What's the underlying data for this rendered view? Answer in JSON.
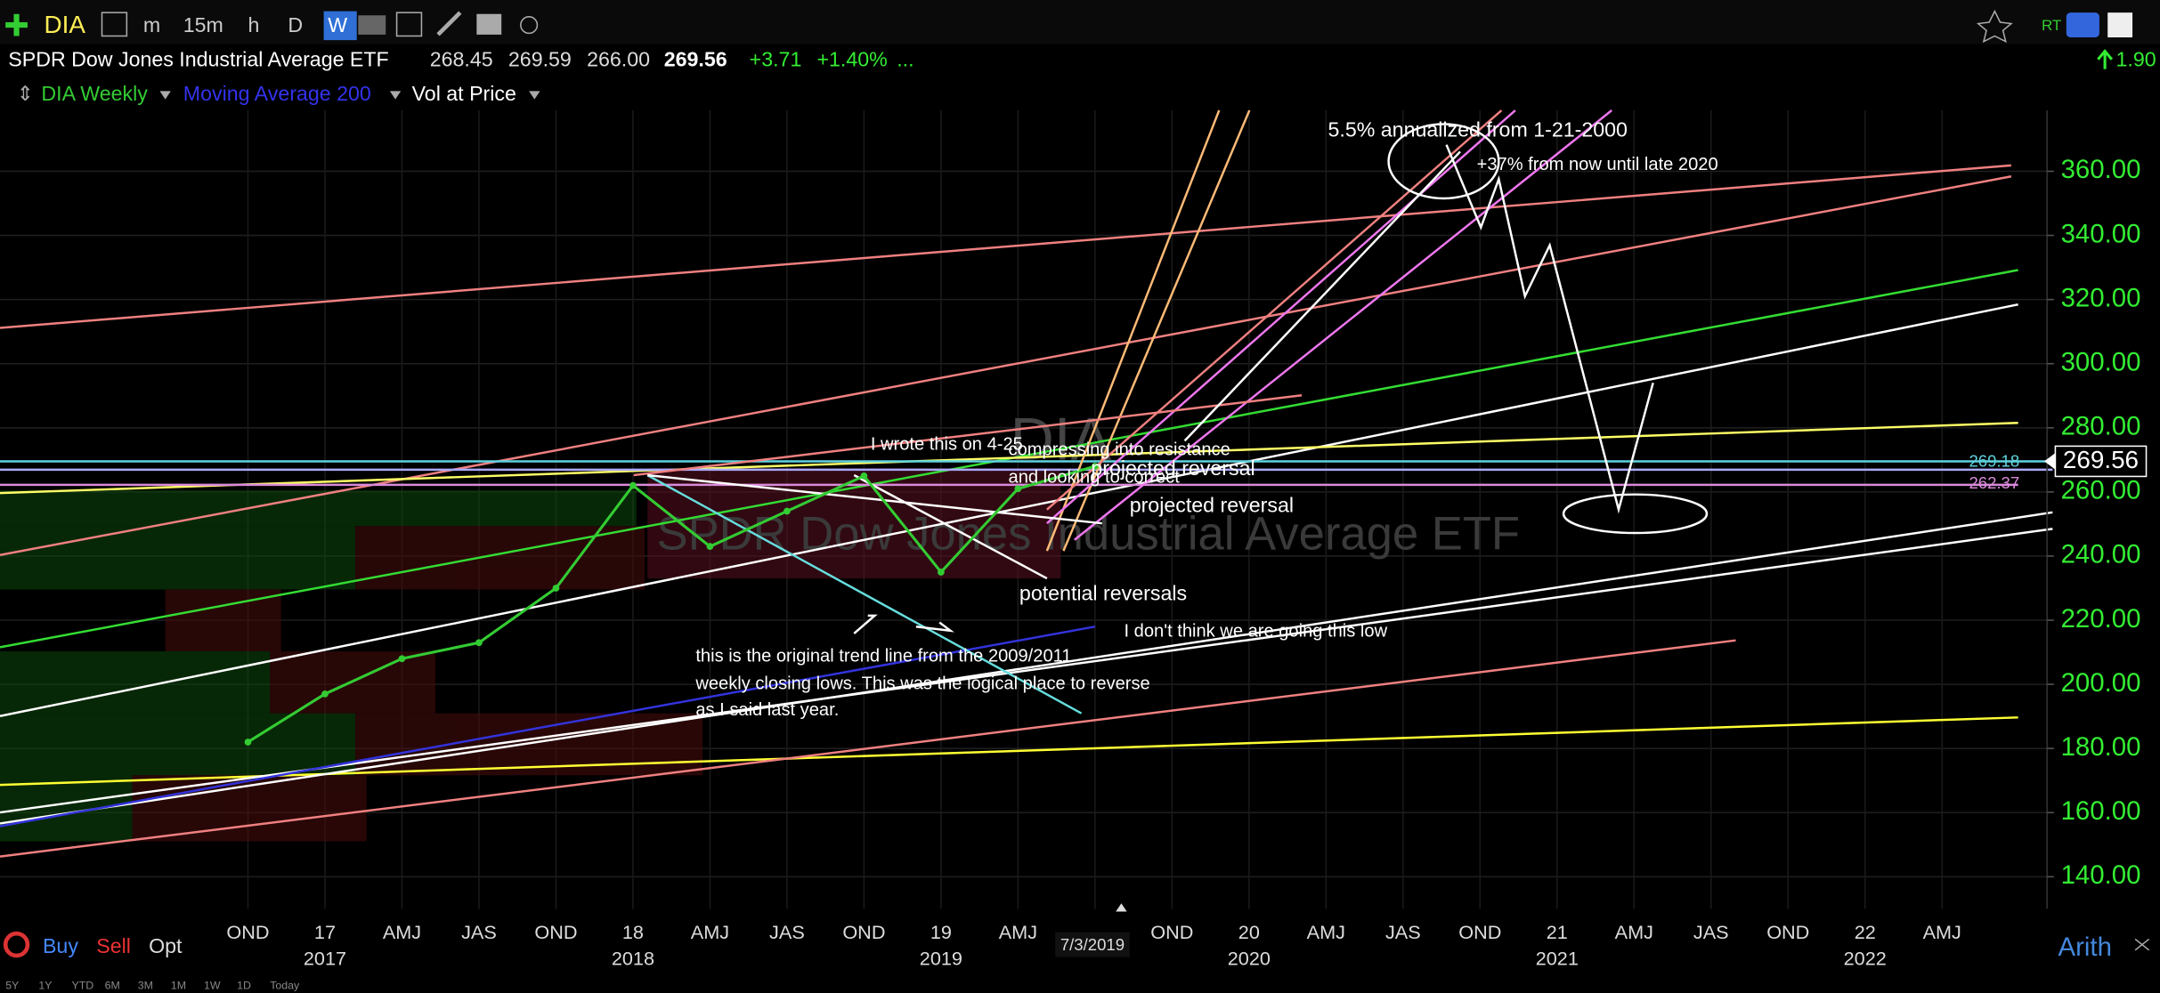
{
  "toolbar": {
    "symbol": "DIA",
    "timeframes": [
      "m",
      "15m",
      "h",
      "D",
      "W"
    ],
    "rt": "RT",
    "right_value": "1.90"
  },
  "quote": {
    "name": "SPDR Dow Jones Industrial Average ETF",
    "open": "268.45",
    "high": "269.59",
    "low": "266.00",
    "last": "269.56",
    "change": "+3.71",
    "change_pct": "+1.40%",
    "more": "..."
  },
  "legend": {
    "symbol": "DIA Weekly",
    "study": "Moving Average 200",
    "overlay": "Vol at Price"
  },
  "watermark": {
    "symbol": "DIA",
    "name": "SPDR Dow Jones Industrial Average ETF"
  },
  "annotations": {
    "annualized": "5.5% annualized from 1-21-2000",
    "target": "+37% from now until late 2020",
    "wrote": "I wrote this on 4-25",
    "compressing": "compressing into resistance",
    "correct": "and looking to correct",
    "projected_1": "projected reversal",
    "projected_2": "projected reversal",
    "potential": "potential reversals",
    "low": "I don't think we are going this low",
    "trend_1": "this is the original trend line from the 2009/2011",
    "trend_2": "weekly closing lows. This was the logical place to reverse",
    "trend_3": "as I said last year."
  },
  "bottom": {
    "buy": "Buy",
    "sell": "Sell",
    "opt": "Opt",
    "scale": "Arith",
    "cursor_date": "7/3/2019",
    "ranges": [
      "5Y",
      "1Y",
      "YTD",
      "6M",
      "3M",
      "1M",
      "1W",
      "1D",
      "Today"
    ]
  },
  "chart_data": {
    "type": "line",
    "categories": [
      "OND",
      "17",
      "AMJ",
      "JAS",
      "OND",
      "18",
      "AMJ",
      "JAS",
      "OND",
      "19",
      "AMJ",
      null,
      "OND",
      "20",
      "AMJ",
      "JAS",
      "OND",
      "21",
      "AMJ",
      "JAS",
      "OND",
      "22",
      "AMJ"
    ],
    "year_labels": [
      "2017",
      "2018",
      "2019",
      "2020",
      "2021",
      "2022"
    ],
    "series": [
      {
        "name": "DIA Weekly",
        "color": "#33cc33",
        "values": [
          182,
          197,
          208,
          213,
          230,
          262,
          243,
          254,
          265,
          235,
          261,
          268,
          null,
          null,
          null,
          null,
          null,
          null,
          null,
          null,
          null,
          null,
          null
        ]
      }
    ],
    "ylim": [
      130,
      379
    ],
    "yticks": [
      {
        "value": 140,
        "label": "140.00"
      },
      {
        "value": 160,
        "label": "160.00"
      },
      {
        "value": 180,
        "label": "180.00"
      },
      {
        "value": 200,
        "label": "200.00"
      },
      {
        "value": 220,
        "label": "220.00"
      },
      {
        "value": 240,
        "label": "240.00"
      },
      {
        "value": 260,
        "label": "260.00"
      },
      {
        "value": 280,
        "label": "280.00"
      },
      {
        "value": 300,
        "label": "300.00"
      },
      {
        "value": 320,
        "label": "320.00"
      },
      {
        "value": 340,
        "label": "340.00"
      },
      {
        "value": 360,
        "label": "360.00"
      }
    ],
    "price_labels": [
      {
        "value": 269.18,
        "label": "269.18",
        "color": "#5fd3e0"
      },
      {
        "value": 262.37,
        "label": "262.37",
        "color": "#d98ad9"
      }
    ],
    "tick_color": "#33ee33",
    "grid": true
  }
}
